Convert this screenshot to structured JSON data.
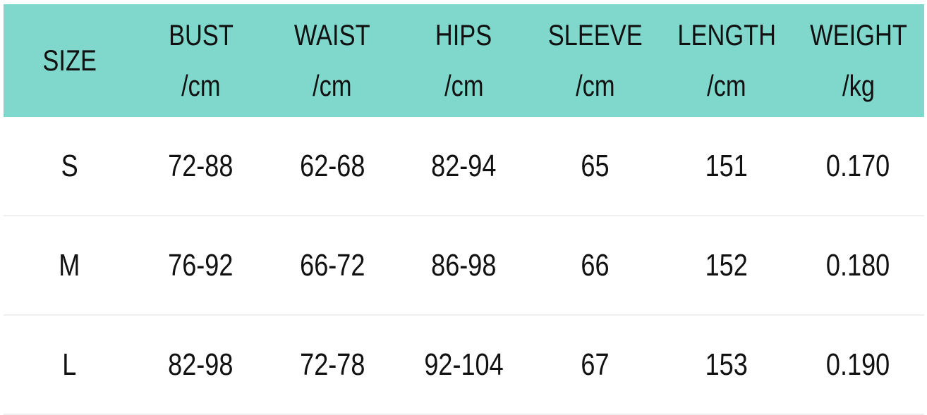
{
  "header": [
    {
      "line1": "SIZE",
      "line2": ""
    },
    {
      "line1": "BUST",
      "line2": "/cm"
    },
    {
      "line1": "WAIST",
      "line2": "/cm"
    },
    {
      "line1": "HIPS",
      "line2": "/cm"
    },
    {
      "line1": "SLEEVE",
      "line2": "/cm"
    },
    {
      "line1": "LENGTH",
      "line2": "/cm"
    },
    {
      "line1": "WEIGHT",
      "line2": "/kg"
    }
  ],
  "rows": [
    [
      "S",
      "72-88",
      "62-68",
      "82-94",
      "65",
      "151",
      "0.170"
    ],
    [
      "M",
      "76-92",
      "66-72",
      "86-98",
      "66",
      "152",
      "0.180"
    ],
    [
      "L",
      "82-98",
      "72-78",
      "92-104",
      "67",
      "153",
      "0.190"
    ]
  ],
  "colors": {
    "header_bg": "#80d8cc"
  }
}
